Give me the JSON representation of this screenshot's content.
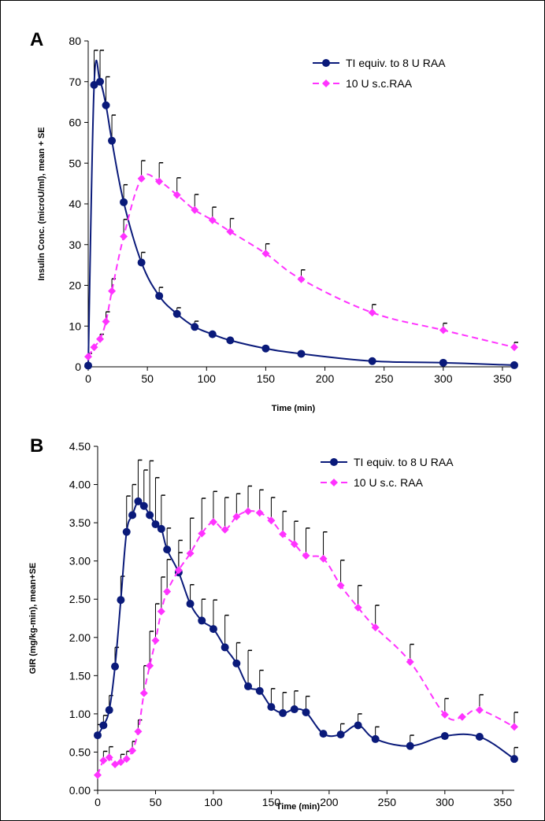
{
  "colors": {
    "ti": "#0a1a7a",
    "sc": "#ff33ff",
    "axis": "#000000",
    "error": "#000000"
  },
  "chart_data": [
    {
      "panel": "A",
      "type": "line",
      "ylabel": "Insulin Conc. (microU/ml), mean + SE",
      "xlabel": "Time (min)",
      "xlim": [
        0,
        360
      ],
      "ylim": [
        0,
        80
      ],
      "xticks": [
        0,
        50,
        100,
        150,
        200,
        250,
        300,
        350
      ],
      "yticks": [
        0,
        10,
        20,
        30,
        40,
        50,
        60,
        70,
        80
      ],
      "ytick_labels": [
        "0",
        "10",
        "20",
        "30",
        "40",
        "50",
        "60",
        "70",
        "80"
      ],
      "legend": {
        "position": "top-right"
      },
      "series": [
        {
          "name": "TI equiv. to 8 U RAA",
          "marker": "circle",
          "line": "solid",
          "x": [
            0,
            5,
            10,
            15,
            20,
            30,
            45,
            60,
            75,
            90,
            105,
            120,
            150,
            180,
            240,
            300,
            360
          ],
          "y": [
            0.3,
            69.2,
            70.0,
            64.2,
            55.5,
            40.4,
            25.6,
            17.4,
            13.0,
            9.8,
            8.0,
            6.5,
            4.5,
            3.2,
            1.4,
            1.0,
            0.4
          ],
          "err": [
            3.0,
            8.5,
            7.7,
            7.0,
            6.3,
            4.3,
            2.5,
            2.1,
            1.5,
            1.4,
            0,
            0,
            0,
            0,
            0,
            0,
            0
          ]
        },
        {
          "name": "10 U s.c.RAA",
          "marker": "diamond",
          "line": "dashed",
          "x": [
            0,
            5,
            10,
            15,
            20,
            30,
            45,
            60,
            75,
            90,
            105,
            120,
            150,
            180,
            240,
            300,
            360
          ],
          "y": [
            2.5,
            4.8,
            6.8,
            11.1,
            18.6,
            32.0,
            46.2,
            45.5,
            42.2,
            38.5,
            36.0,
            33.2,
            27.8,
            21.5,
            13.3,
            9.0,
            4.8
          ],
          "err": [
            0,
            0,
            1.2,
            2.4,
            3.0,
            4.2,
            4.4,
            4.6,
            4.2,
            3.8,
            3.2,
            3.2,
            2.4,
            2.3,
            2.0,
            1.7,
            1.2
          ]
        }
      ]
    },
    {
      "panel": "B",
      "type": "line",
      "ylabel": "GIR (mg/kg-min), mean+SE",
      "xlabel": "Time (min)",
      "xlim": [
        0,
        360
      ],
      "ylim": [
        0,
        4.5
      ],
      "xticks": [
        0,
        50,
        100,
        150,
        200,
        250,
        300,
        350
      ],
      "yticks": [
        0,
        0.5,
        1.0,
        1.5,
        2.0,
        2.5,
        3.0,
        3.5,
        4.0,
        4.5
      ],
      "ytick_labels": [
        "0.00",
        "0.50",
        "1.00",
        "1.50",
        "2.00",
        "2.50",
        "3.00",
        "3.50",
        "4.00",
        "4.50"
      ],
      "legend": {
        "position": "top-right"
      },
      "series": [
        {
          "name": "TI equiv. to 8 U RAA",
          "marker": "circle",
          "line": "solid",
          "x": [
            0,
            5,
            10,
            15,
            20,
            25,
            30,
            35,
            40,
            45,
            50,
            55,
            60,
            70,
            80,
            90,
            100,
            110,
            120,
            130,
            140,
            150,
            160,
            170,
            180,
            195,
            210,
            225,
            240,
            270,
            300,
            330,
            360
          ],
          "y": [
            0.72,
            0.85,
            1.05,
            1.62,
            2.49,
            3.38,
            3.6,
            3.78,
            3.72,
            3.6,
            3.48,
            3.42,
            3.15,
            2.85,
            2.44,
            2.22,
            2.11,
            1.87,
            1.66,
            1.36,
            1.3,
            1.09,
            1.01,
            1.06,
            1.02,
            0.74,
            0.73,
            0.85,
            0.67,
            0.58,
            0.71,
            0.7,
            0.41
          ],
          "err": [
            0.14,
            0.13,
            0.19,
            0.25,
            0.31,
            0.47,
            0.4,
            0.54,
            0.47,
            0.71,
            0.61,
            0.44,
            0.28,
            0.26,
            0.25,
            0.28,
            0.38,
            0.42,
            0.27,
            0.47,
            0.27,
            0.24,
            0.27,
            0.24,
            0.21,
            0.0,
            0.14,
            0.15,
            0.16,
            0.14,
            0.0,
            0.0,
            0.15
          ]
        },
        {
          "name": "10 U s.c. RAA",
          "marker": "diamond",
          "line": "dashed",
          "x": [
            0,
            5,
            10,
            15,
            20,
            25,
            30,
            35,
            40,
            45,
            50,
            55,
            60,
            70,
            80,
            90,
            100,
            110,
            120,
            130,
            140,
            150,
            160,
            170,
            180,
            195,
            210,
            225,
            240,
            270,
            300,
            315,
            330,
            360
          ],
          "y": [
            0.2,
            0.39,
            0.43,
            0.34,
            0.37,
            0.41,
            0.52,
            0.77,
            1.27,
            1.63,
            1.96,
            2.34,
            2.6,
            2.88,
            3.1,
            3.36,
            3.51,
            3.41,
            3.58,
            3.65,
            3.63,
            3.53,
            3.35,
            3.22,
            3.07,
            3.03,
            2.68,
            2.39,
            2.13,
            1.68,
            0.99,
            0.96,
            1.05,
            0.83
          ],
          "err": [
            0.0,
            0.12,
            0.14,
            0.0,
            0.1,
            0.1,
            0.12,
            0.15,
            0.36,
            0.45,
            0.48,
            0.45,
            0.42,
            0.39,
            0.46,
            0.46,
            0.4,
            0.42,
            0.3,
            0.33,
            0.3,
            0.3,
            0.3,
            0.3,
            0.36,
            0.35,
            0.33,
            0.29,
            0.29,
            0.23,
            0.21,
            0.0,
            0.2,
            0.19
          ]
        }
      ]
    }
  ]
}
